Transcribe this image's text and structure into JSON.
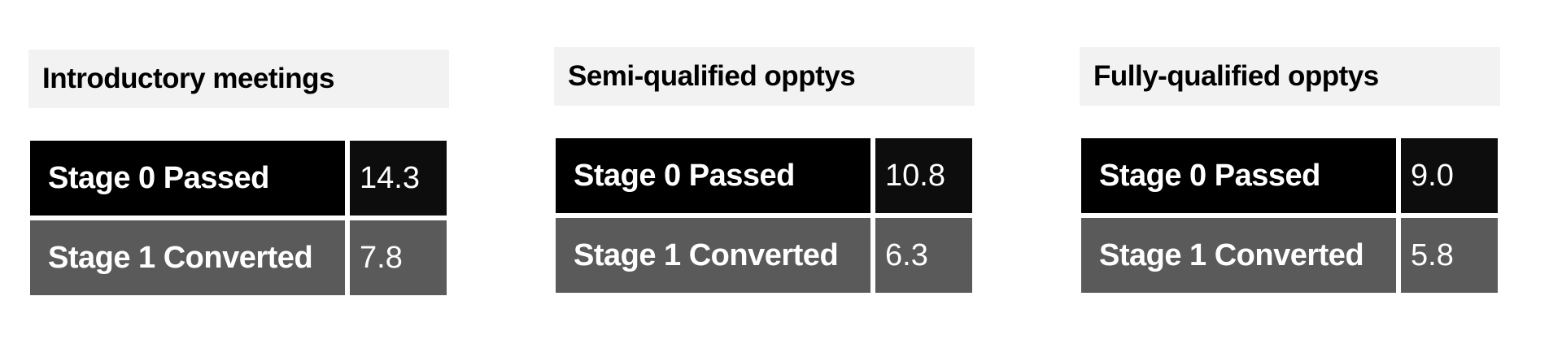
{
  "panels": [
    {
      "title": "Introductory meetings",
      "rows": [
        {
          "label": "Stage 0 Passed",
          "value": "14.3"
        },
        {
          "label": "Stage 1 Converted",
          "value": "7.8"
        }
      ]
    },
    {
      "title": "Semi-qualified opptys",
      "rows": [
        {
          "label": "Stage 0 Passed",
          "value": "10.8"
        },
        {
          "label": "Stage 1 Converted",
          "value": "6.3"
        }
      ]
    },
    {
      "title": "Fully-qualified opptys",
      "rows": [
        {
          "label": "Stage 0 Passed",
          "value": "9.0"
        },
        {
          "label": "Stage 1 Converted",
          "value": "5.8"
        }
      ]
    }
  ],
  "colors": {
    "title_bg": "#f2f2f2",
    "stage0_bg": "#000000",
    "stage1_bg": "#5a5a5a"
  }
}
